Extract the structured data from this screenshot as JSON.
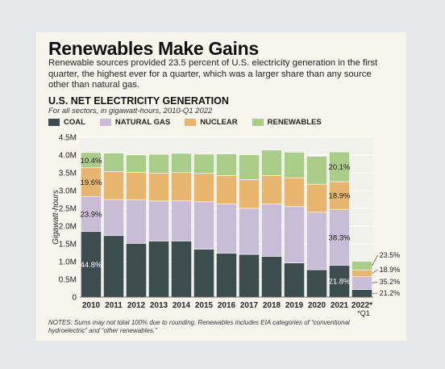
{
  "headline": "Renewables Make Gains",
  "dek": "Renewable sources provided 23.5 percent of U.S. electricity generation in the first quarter, the highest ever for a quarter, which was a larger share than any source other than natural gas.",
  "notes": "NOTES: Sums may not total 100% due to rounding. Renewables includes EIA categories of “conventional hydroelectric” and “other renewables.”",
  "colors": {
    "coal": "#3d4c4f",
    "natural_gas": "#c8bcd6",
    "nuclear": "#e8b56e",
    "renewables": "#a9cc89",
    "grid": "#ffffff",
    "plot_bg": "#f2f2ed"
  },
  "chart_data": {
    "type": "bar",
    "stacked": true,
    "title": "U.S. NET ELECTRICITY GENERATION",
    "subtitle": "For all sectors, in gigawatt-hours, 2010-Q1 2022",
    "xlabel": "",
    "ylabel": "Gigawatt-hours",
    "ylim": [
      0,
      4500000
    ],
    "yticks": [
      "0",
      "0.5M",
      "1.0M",
      "1.5M",
      "2.0M",
      "2.5M",
      "3.0M",
      "3.5M",
      "4.0M",
      "4.5M"
    ],
    "grid": true,
    "legend_position": "top-left",
    "categories": [
      "2010",
      "2011",
      "2012",
      "2013",
      "2014",
      "2015",
      "2016",
      "2017",
      "2018",
      "2019",
      "2020",
      "2021",
      "2022*"
    ],
    "footnote": "*Q1",
    "series": [
      {
        "name": "COAL",
        "color_key": "coal",
        "values": [
          1847000,
          1733000,
          1514000,
          1581000,
          1582000,
          1352000,
          1239000,
          1205000,
          1149000,
          965000,
          773000,
          898000,
          216000
        ]
      },
      {
        "name": "NATURAL GAS",
        "color_key": "natural_gas",
        "values": [
          988000,
          1013000,
          1225000,
          1125000,
          1127000,
          1334000,
          1379000,
          1296000,
          1469000,
          1586000,
          1618000,
          1575000,
          359000
        ]
      },
      {
        "name": "NUCLEAR",
        "color_key": "nuclear",
        "values": [
          807000,
          790000,
          769000,
          789000,
          797000,
          797000,
          805000,
          805000,
          807000,
          809000,
          790000,
          778000,
          193000
        ]
      },
      {
        "name": "RENEWABLES",
        "color_key": "renewables",
        "values": [
          428000,
          517000,
          496000,
          525000,
          541000,
          543000,
          609000,
          701000,
          714000,
          721000,
          786000,
          834000,
          240000
        ]
      }
    ],
    "data_labels": [
      {
        "category": "2010",
        "series": "COAL",
        "text": "44.8%"
      },
      {
        "category": "2010",
        "series": "NATURAL GAS",
        "text": "23.9%"
      },
      {
        "category": "2010",
        "series": "NUCLEAR",
        "text": "19.6%"
      },
      {
        "category": "2010",
        "series": "RENEWABLES",
        "text": "10.4%"
      },
      {
        "category": "2021",
        "series": "COAL",
        "text": "21.8%"
      },
      {
        "category": "2021",
        "series": "NATURAL GAS",
        "text": "38.3%"
      },
      {
        "category": "2021",
        "series": "NUCLEAR",
        "text": "18.9%"
      },
      {
        "category": "2021",
        "series": "RENEWABLES",
        "text": "20.1%"
      }
    ],
    "callouts": [
      {
        "category": "2022*",
        "series": "RENEWABLES",
        "text": "23.5%"
      },
      {
        "category": "2022*",
        "series": "NUCLEAR",
        "text": "18.9%"
      },
      {
        "category": "2022*",
        "series": "NATURAL GAS",
        "text": "35.2%"
      },
      {
        "category": "2022*",
        "series": "COAL",
        "text": "21.2%"
      }
    ]
  }
}
